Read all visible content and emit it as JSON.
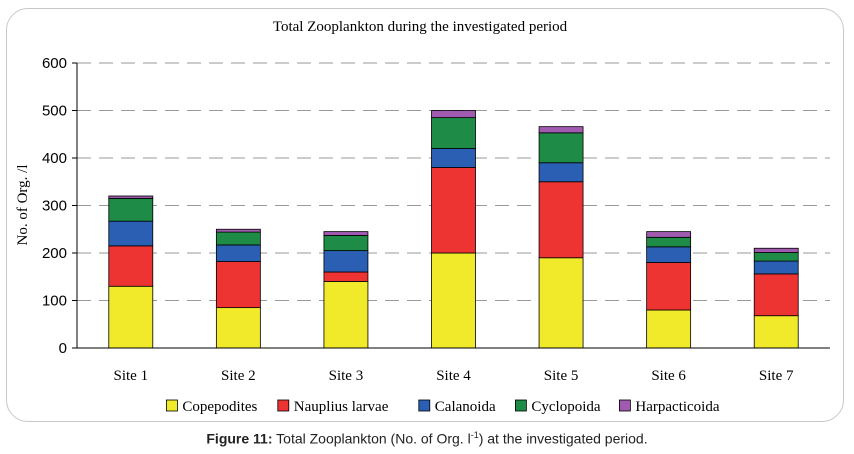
{
  "chart_data": {
    "type": "bar",
    "stacked": true,
    "title": "Total Zooplankton during the investigated period",
    "xlabel": "",
    "ylabel": "No. of Org. /l",
    "ylim": [
      0,
      600
    ],
    "yticks": [
      0,
      100,
      200,
      300,
      400,
      500,
      600
    ],
    "grid": "horizontal dashed",
    "legend_position": "bottom",
    "categories": [
      "Site 1",
      "Site 2",
      "Site 3",
      "Site 4",
      "Site 5",
      "Site 6",
      "Site 7"
    ],
    "series": [
      {
        "name": "Copepodites",
        "color": "#f0ea2a",
        "values": [
          130,
          85,
          140,
          200,
          190,
          80,
          68
        ]
      },
      {
        "name": "Nauplius larvae",
        "color": "#ee3333",
        "values": [
          85,
          97,
          20,
          180,
          160,
          100,
          88
        ]
      },
      {
        "name": "Calanoida",
        "color": "#2b5fb4",
        "values": [
          52,
          35,
          45,
          40,
          40,
          33,
          27
        ]
      },
      {
        "name": "Cyclopoida",
        "color": "#1e8c46",
        "values": [
          48,
          27,
          32,
          65,
          63,
          20,
          18
        ]
      },
      {
        "name": "Harpacticoida",
        "color": "#a05ab0",
        "values": [
          5,
          6,
          8,
          15,
          13,
          12,
          9
        ]
      }
    ]
  },
  "caption": {
    "label": "Figure 11:",
    "text_before": " Total Zooplankton (No. of Org. l",
    "sup": "-1",
    "text_after": ") at the investigated period."
  }
}
